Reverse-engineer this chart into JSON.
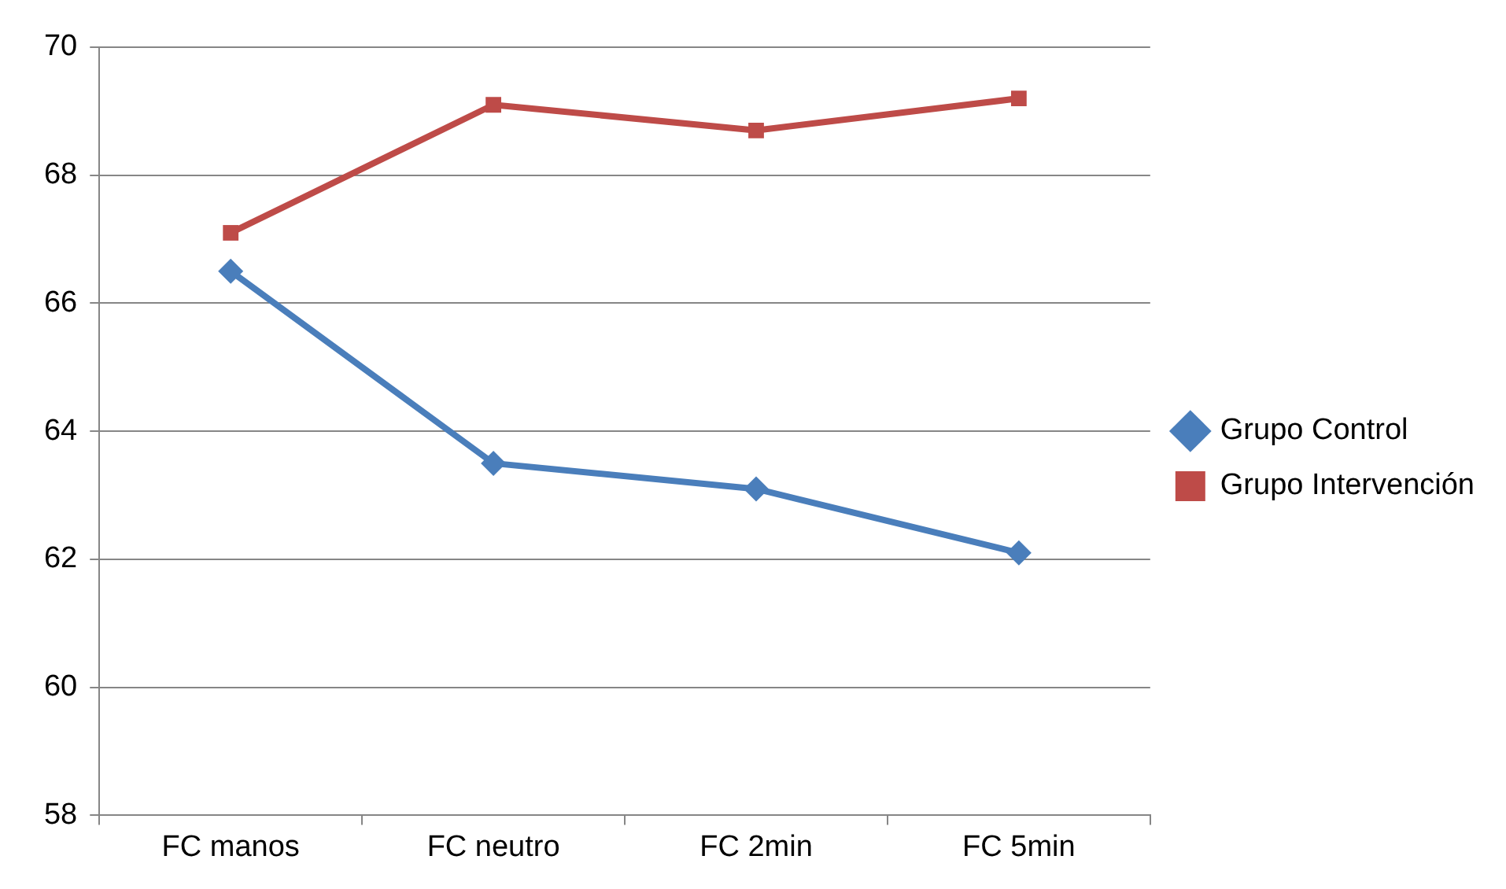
{
  "chart_data": {
    "type": "line",
    "categories": [
      "FC manos",
      "FC neutro",
      "FC 2min",
      "FC 5min"
    ],
    "series": [
      {
        "name": "Grupo Control",
        "color": "#4a7ebb",
        "values": [
          66.5,
          63.5,
          63.1,
          62.1
        ],
        "marker": "diamond"
      },
      {
        "name": "Grupo Intervención",
        "color": "#be4b48",
        "values": [
          67.1,
          69.1,
          68.7,
          69.2
        ],
        "marker": "square"
      }
    ],
    "ylim": [
      58,
      70
    ],
    "yticks": [
      58,
      60,
      62,
      64,
      66,
      68,
      70
    ],
    "grid": "y",
    "legend": "right",
    "line_style": "solid"
  }
}
